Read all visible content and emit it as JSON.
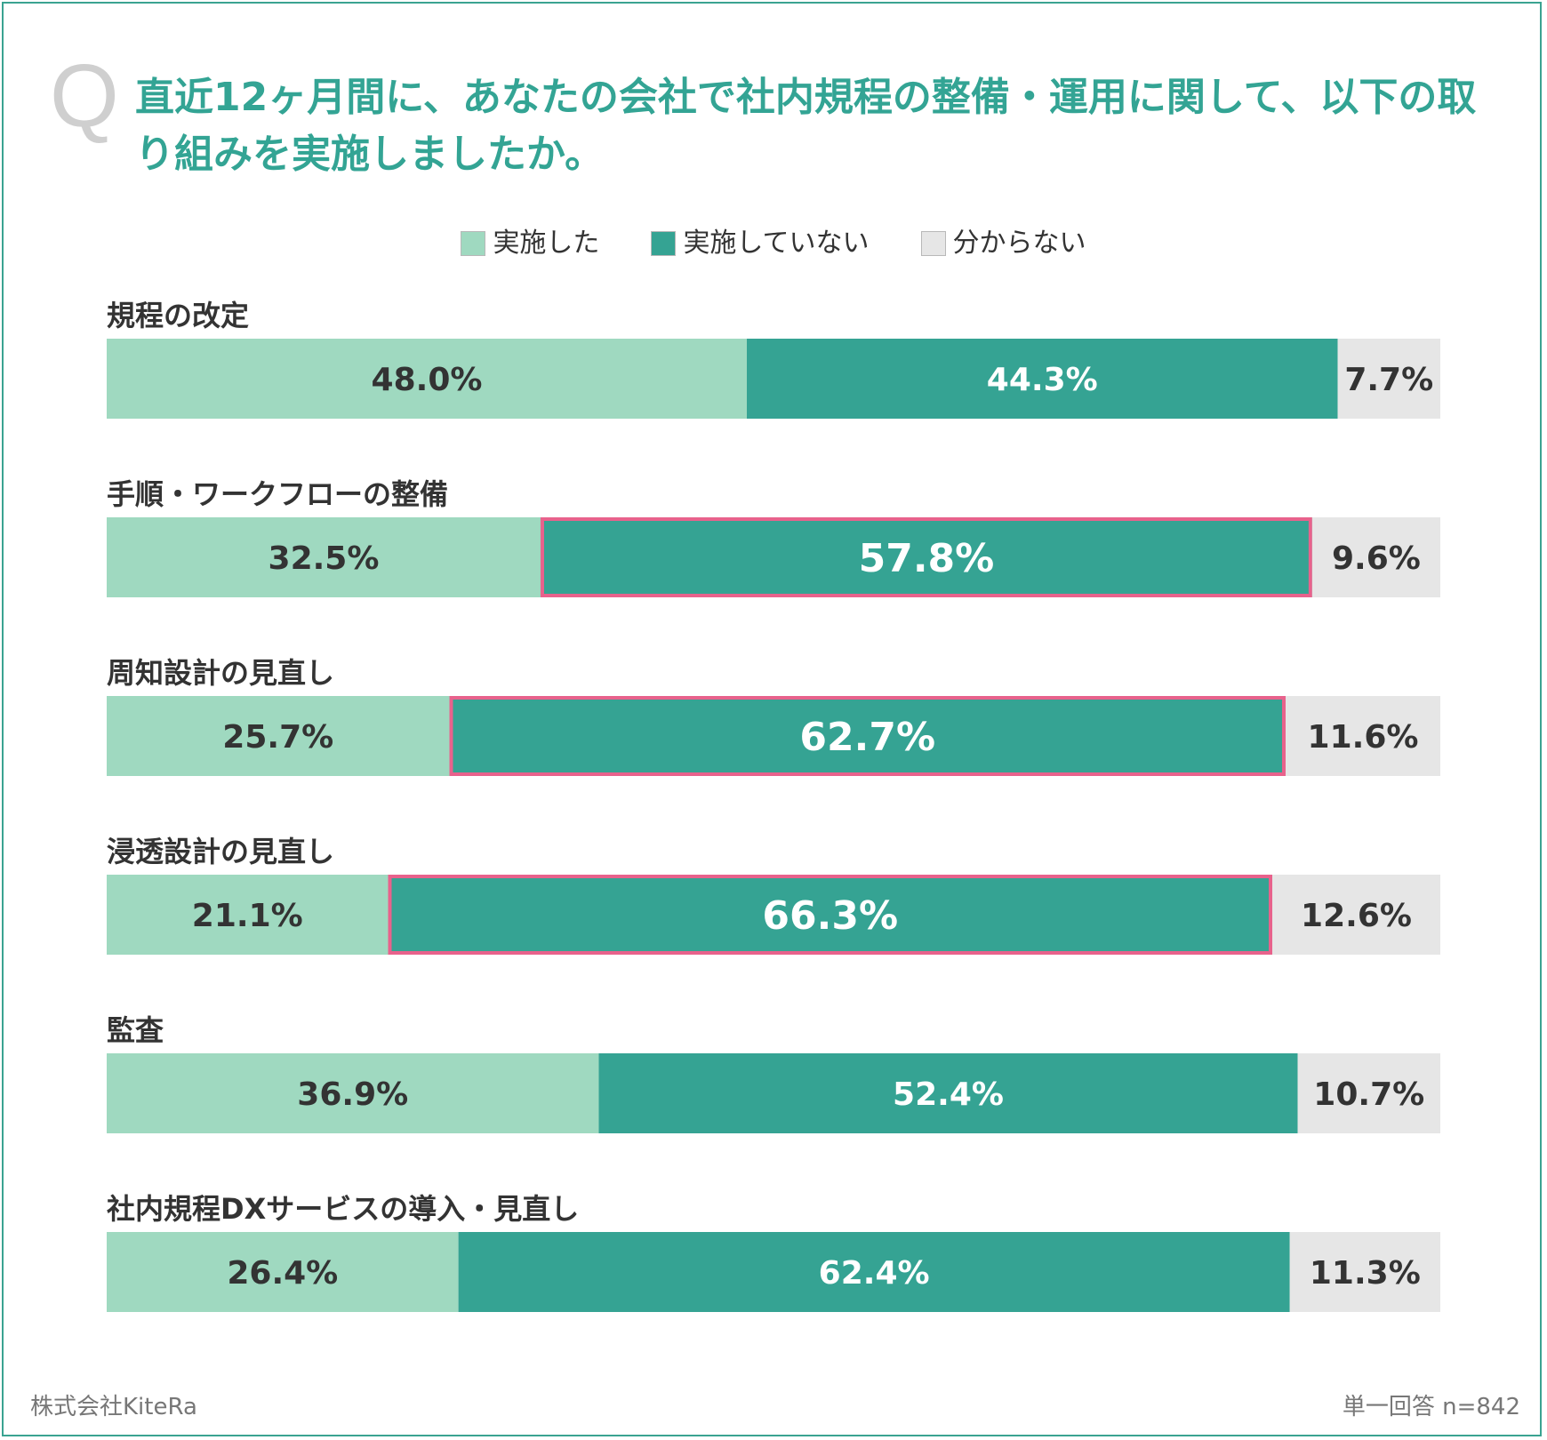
{
  "question_mark": "Q",
  "title": "直近12ヶ月間に、あなたの会社で社内規程の整備・運用に関して、以下の取り組みを実施しましたか。",
  "footer": {
    "company": "株式会社KiteRa",
    "sample_note": "単一回答 n=842"
  },
  "colors": {
    "implemented": "#9fd9c0",
    "not_implemented": "#35a393",
    "unknown": "#e6e6e6",
    "highlight": "#e8628c",
    "title": "#33a494"
  },
  "chart_data": {
    "type": "bar",
    "orientation": "horizontal",
    "stacked": true,
    "xlim": [
      0,
      100
    ],
    "unit": "%",
    "legend_position": "top-center",
    "categories": [
      "規程の改定",
      "手順・ワークフローの整備",
      "周知設計の見直し",
      "浸透設計の見直し",
      "監査",
      "社内規程DXサービスの導入・見直し"
    ],
    "series": [
      {
        "name": "実施した",
        "values": [
          48.0,
          32.5,
          25.7,
          21.1,
          36.9,
          26.4
        ]
      },
      {
        "name": "実施していない",
        "values": [
          44.3,
          57.8,
          62.7,
          66.3,
          52.4,
          62.4
        ]
      },
      {
        "name": "分からない",
        "values": [
          7.7,
          9.6,
          11.6,
          12.6,
          10.7,
          11.3
        ]
      }
    ],
    "highlighted": [
      {
        "category_index": 1,
        "series_index": 1
      },
      {
        "category_index": 2,
        "series_index": 1
      },
      {
        "category_index": 3,
        "series_index": 1
      }
    ]
  }
}
